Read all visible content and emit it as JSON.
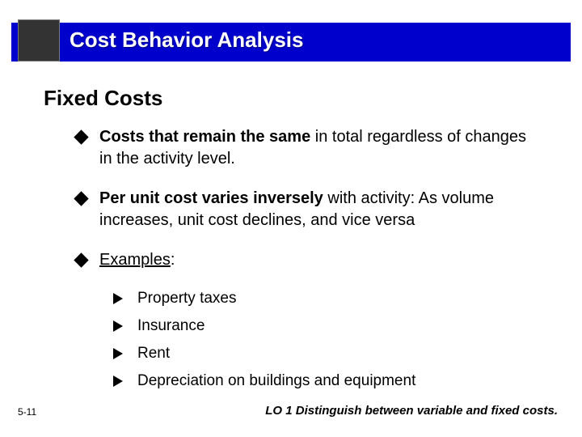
{
  "header": {
    "title": "Cost Behavior Analysis"
  },
  "subheading": "Fixed Costs",
  "bullets": [
    {
      "bold": "Costs that remain the same",
      "rest": " in total regardless of changes in the activity level."
    },
    {
      "bold": "Per unit cost varies inversely",
      "rest": " with activity:  As volume increases, unit cost declines, and vice versa"
    },
    {
      "bold": "",
      "rest": "",
      "underline": "Examples",
      "after": ":"
    }
  ],
  "examples": [
    "Property taxes",
    "Insurance",
    "Rent",
    "Depreciation on buildings and equipment"
  ],
  "footer": {
    "page": "5-11",
    "lo": "LO 1  Distinguish between variable and fixed costs."
  },
  "styling": {
    "header_bg": "#0000cc",
    "header_box_bg": "#333333",
    "title_color": "#ffffff",
    "text_color": "#000000",
    "title_fontsize": 26,
    "subheading_fontsize": 26,
    "bullet_fontsize": 20,
    "subbullet_fontsize": 19,
    "footer_fontsize": 15,
    "pagenum_fontsize": 12,
    "font_family": "Arial"
  }
}
